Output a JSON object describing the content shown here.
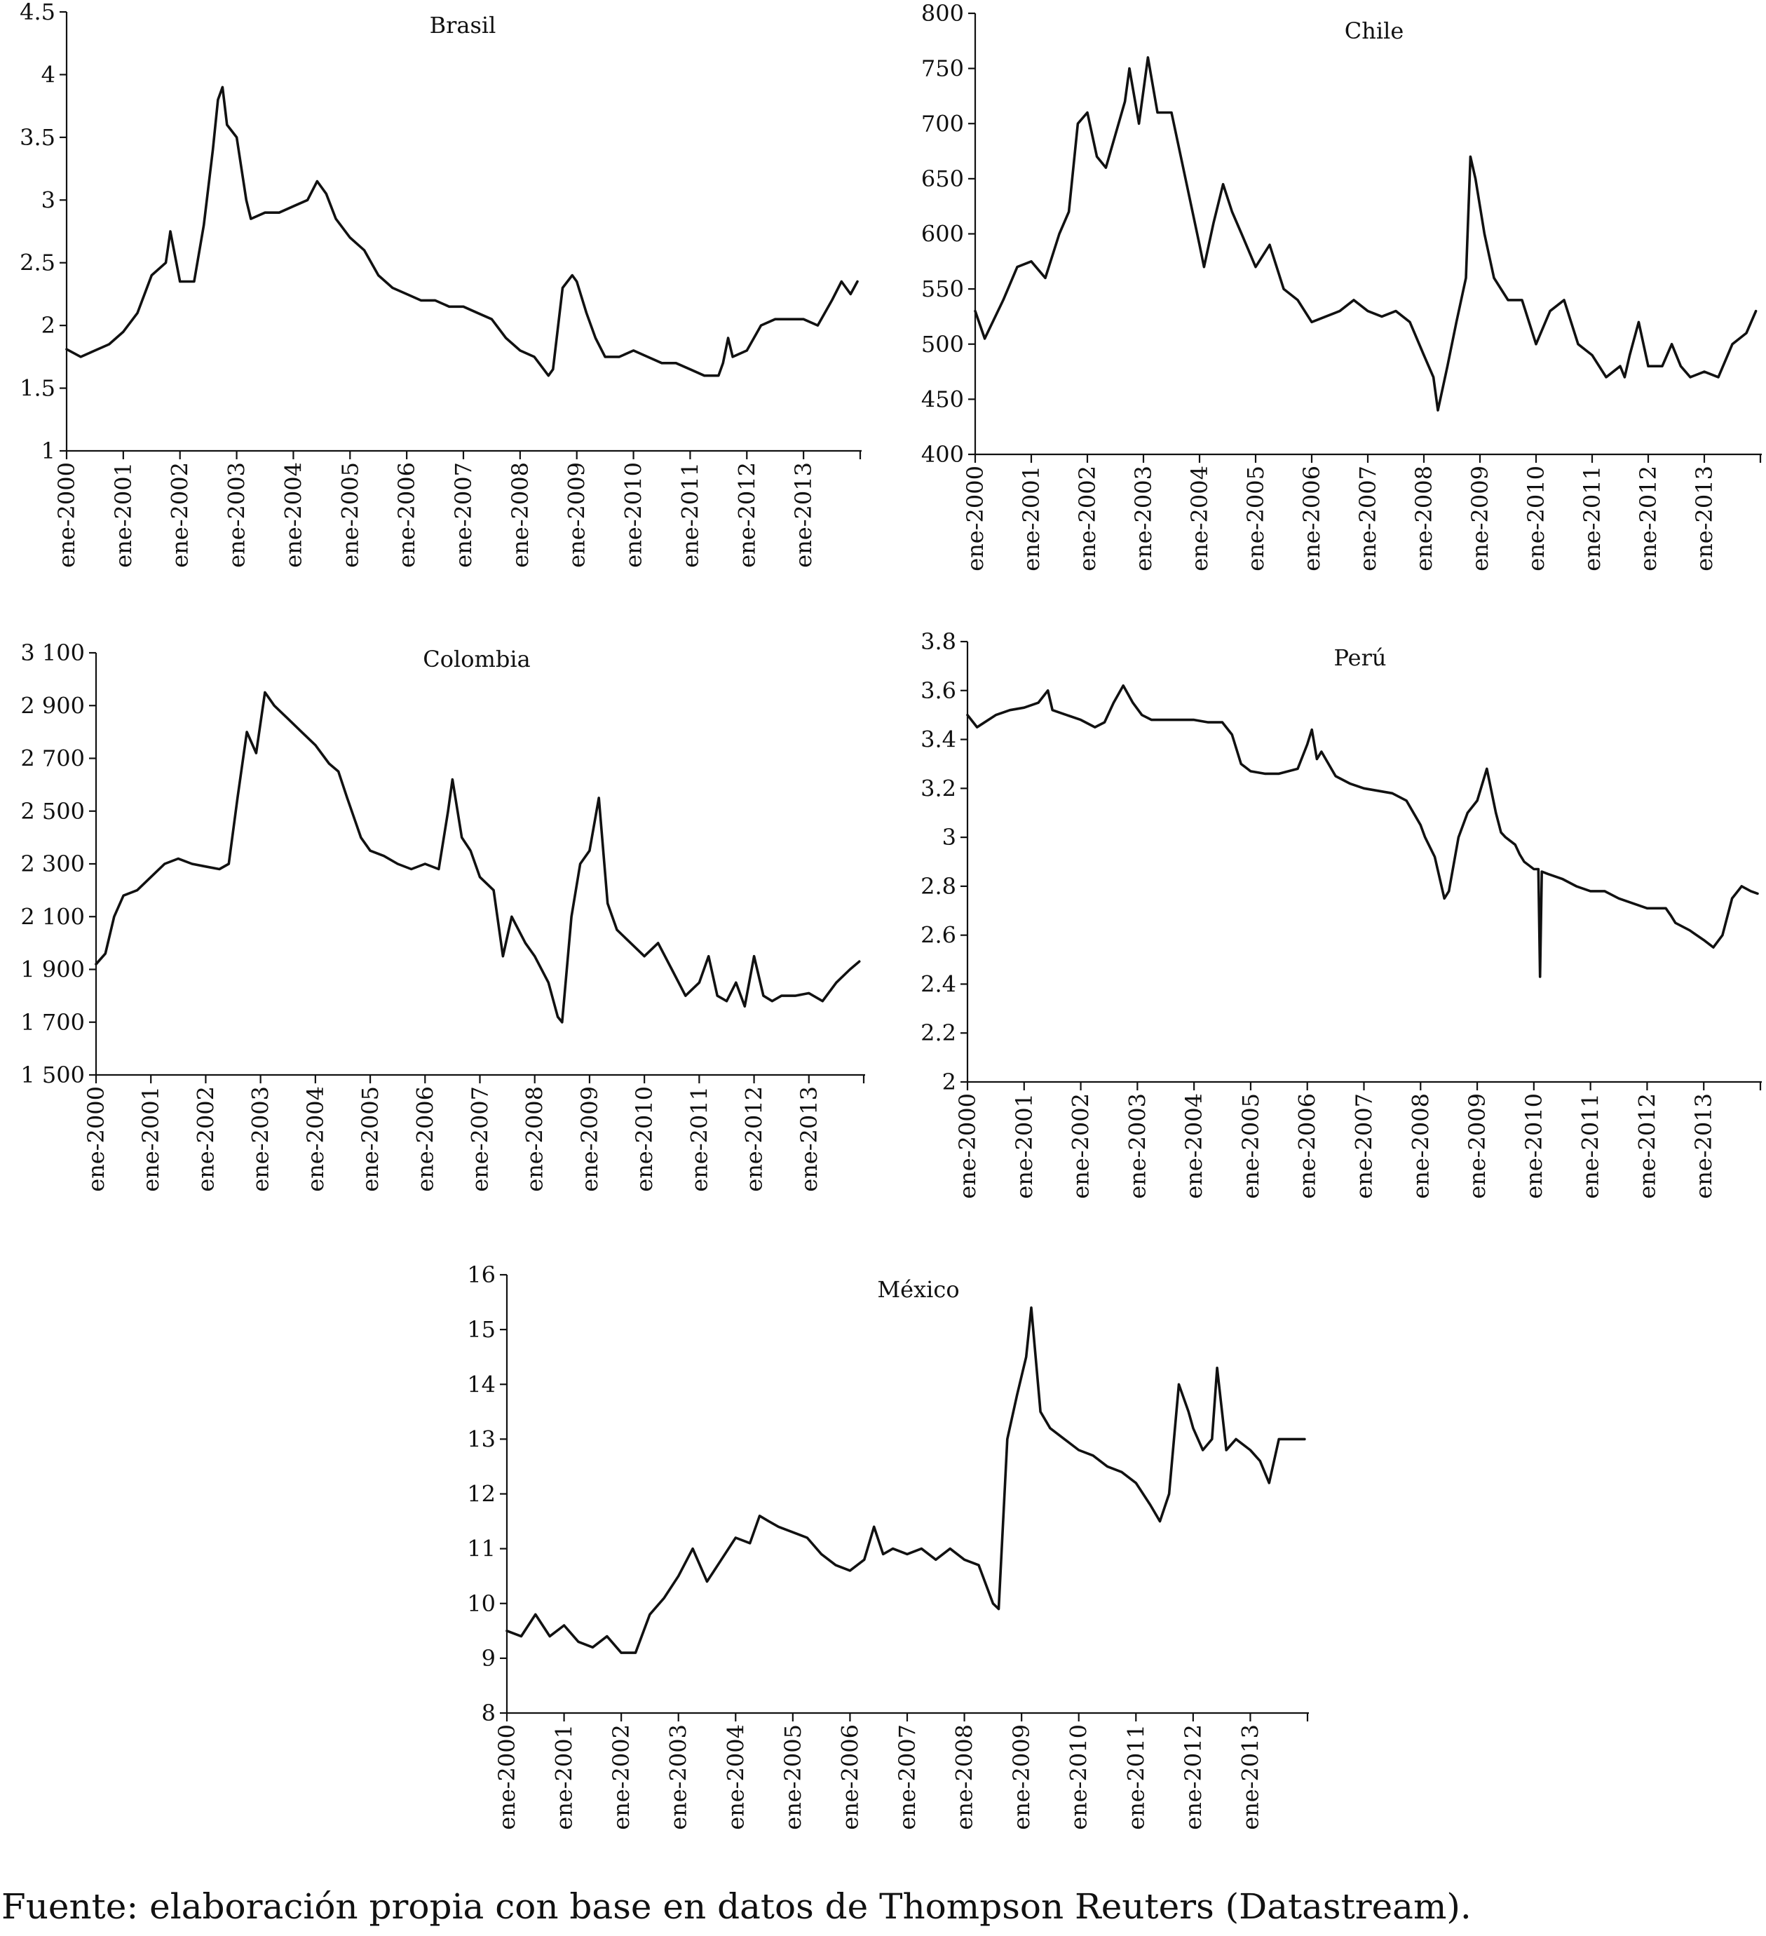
{
  "source": "Fuente: elaboración propia con base en datos de Thompson Reuters (Datastream).",
  "chart_data": [
    {
      "type": "line",
      "title": "Brasil",
      "xlabel": "",
      "ylabel": "",
      "ylim": [
        1,
        4.5
      ],
      "y_ticks": [
        "1",
        "1.5",
        "2",
        "2.5",
        "3",
        "3.5",
        "4",
        "4.5"
      ],
      "x_tick_labels": [
        "ene-2000",
        "ene-2001",
        "ene-2002",
        "ene-2003",
        "ene-2004",
        "ene-2005",
        "ene-2006",
        "ene-2007",
        "ene-2008",
        "ene-2009",
        "ene-2010",
        "ene-2011",
        "ene-2012",
        "ene-2013"
      ],
      "xlim": [
        2000,
        2014
      ],
      "grid": false,
      "series": [
        {
          "x": [
            2000.0,
            2000.25,
            2000.5,
            2000.75,
            2001.0,
            2001.25,
            2001.5,
            2001.75,
            2001.83,
            2002.0,
            2002.25,
            2002.42,
            2002.58,
            2002.67,
            2002.75,
            2002.83,
            2003.0,
            2003.17,
            2003.25,
            2003.5,
            2003.75,
            2004.0,
            2004.25,
            2004.42,
            2004.58,
            2004.75,
            2005.0,
            2005.25,
            2005.5,
            2005.75,
            2006.0,
            2006.25,
            2006.5,
            2006.75,
            2007.0,
            2007.25,
            2007.5,
            2007.75,
            2008.0,
            2008.25,
            2008.5,
            2008.58,
            2008.75,
            2008.92,
            2009.0,
            2009.17,
            2009.33,
            2009.5,
            2009.75,
            2010.0,
            2010.25,
            2010.5,
            2010.75,
            2011.0,
            2011.25,
            2011.5,
            2011.58,
            2011.67,
            2011.75,
            2012.0,
            2012.25,
            2012.5,
            2012.75,
            2013.0,
            2013.25,
            2013.5,
            2013.67,
            2013.83,
            2013.95
          ],
          "y": [
            1.81,
            1.75,
            1.8,
            1.85,
            1.95,
            2.1,
            2.4,
            2.5,
            2.75,
            2.35,
            2.35,
            2.8,
            3.4,
            3.8,
            3.9,
            3.6,
            3.5,
            3.0,
            2.85,
            2.9,
            2.9,
            2.95,
            3.0,
            3.15,
            3.05,
            2.85,
            2.7,
            2.6,
            2.4,
            2.3,
            2.25,
            2.2,
            2.2,
            2.15,
            2.15,
            2.1,
            2.05,
            1.9,
            1.8,
            1.75,
            1.6,
            1.65,
            2.3,
            2.4,
            2.35,
            2.1,
            1.9,
            1.75,
            1.75,
            1.8,
            1.75,
            1.7,
            1.7,
            1.65,
            1.6,
            1.6,
            1.7,
            1.9,
            1.75,
            1.8,
            2.0,
            2.05,
            2.05,
            2.05,
            2.0,
            2.2,
            2.35,
            2.25,
            2.35
          ]
        }
      ]
    },
    {
      "type": "line",
      "title": "Chile",
      "xlabel": "",
      "ylabel": "",
      "ylim": [
        400,
        800
      ],
      "y_ticks": [
        "400",
        "450",
        "500",
        "550",
        "600",
        "650",
        "700",
        "750",
        "800"
      ],
      "x_tick_labels": [
        "ene-2000",
        "ene-2001",
        "ene-2002",
        "ene-2003",
        "ene-2004",
        "ene-2005",
        "ene-2006",
        "ene-2007",
        "ene-2008",
        "ene-2009",
        "ene-2010",
        "ene-2011",
        "ene-2012",
        "ene-2013"
      ],
      "xlim": [
        2000,
        2014
      ],
      "grid": false,
      "series": [
        {
          "x": [
            2000.0,
            2000.17,
            2000.5,
            2000.75,
            2001.0,
            2001.25,
            2001.5,
            2001.67,
            2001.83,
            2002.0,
            2002.17,
            2002.33,
            2002.5,
            2002.67,
            2002.75,
            2002.92,
            2003.08,
            2003.25,
            2003.5,
            2003.75,
            2004.0,
            2004.08,
            2004.25,
            2004.42,
            2004.58,
            2004.75,
            2005.0,
            2005.25,
            2005.5,
            2005.75,
            2006.0,
            2006.25,
            2006.5,
            2006.75,
            2007.0,
            2007.25,
            2007.5,
            2007.75,
            2008.0,
            2008.17,
            2008.25,
            2008.42,
            2008.58,
            2008.75,
            2008.83,
            2008.92,
            2009.08,
            2009.25,
            2009.5,
            2009.75,
            2010.0,
            2010.25,
            2010.5,
            2010.75,
            2011.0,
            2011.25,
            2011.5,
            2011.58,
            2011.67,
            2011.83,
            2012.0,
            2012.25,
            2012.42,
            2012.58,
            2012.75,
            2013.0,
            2013.25,
            2013.5,
            2013.75,
            2013.92
          ],
          "y": [
            530,
            505,
            540,
            570,
            575,
            560,
            600,
            620,
            700,
            710,
            670,
            660,
            690,
            720,
            750,
            700,
            760,
            710,
            710,
            650,
            590,
            570,
            610,
            645,
            620,
            600,
            570,
            590,
            550,
            540,
            520,
            525,
            530,
            540,
            530,
            525,
            530,
            520,
            490,
            470,
            440,
            480,
            520,
            560,
            670,
            650,
            600,
            560,
            540,
            540,
            500,
            530,
            540,
            500,
            490,
            470,
            480,
            470,
            490,
            520,
            480,
            480,
            500,
            480,
            470,
            475,
            470,
            500,
            510,
            530
          ]
        }
      ]
    },
    {
      "type": "line",
      "title": "Colombia",
      "xlabel": "",
      "ylabel": "",
      "ylim": [
        1500,
        3100
      ],
      "y_ticks": [
        "1 500",
        "1 700",
        "1 900",
        "2 100",
        "2 300",
        "2 500",
        "2 700",
        "2 900",
        "3 100"
      ],
      "x_tick_labels": [
        "ene-2000",
        "ene-2001",
        "ene-2002",
        "ene-2003",
        "ene-2004",
        "ene-2005",
        "ene-2006",
        "ene-2007",
        "ene-2008",
        "ene-2009",
        "ene-2010",
        "ene-2011",
        "ene-2012",
        "ene-2013"
      ],
      "xlim": [
        2000,
        2014
      ],
      "grid": false,
      "series": [
        {
          "x": [
            2000.0,
            2000.17,
            2000.33,
            2000.5,
            2000.75,
            2001.0,
            2001.25,
            2001.5,
            2001.75,
            2002.0,
            2002.25,
            2002.42,
            2002.58,
            2002.75,
            2002.92,
            2003.08,
            2003.25,
            2003.5,
            2003.75,
            2004.0,
            2004.25,
            2004.42,
            2004.58,
            2004.83,
            2005.0,
            2005.25,
            2005.5,
            2005.75,
            2006.0,
            2006.25,
            2006.42,
            2006.5,
            2006.67,
            2006.83,
            2007.0,
            2007.25,
            2007.42,
            2007.58,
            2007.83,
            2008.0,
            2008.25,
            2008.42,
            2008.5,
            2008.67,
            2008.83,
            2009.0,
            2009.17,
            2009.33,
            2009.5,
            2009.75,
            2010.0,
            2010.25,
            2010.5,
            2010.75,
            2011.0,
            2011.17,
            2011.33,
            2011.5,
            2011.67,
            2011.83,
            2012.0,
            2012.17,
            2012.33,
            2012.5,
            2012.75,
            2013.0,
            2013.25,
            2013.5,
            2013.75,
            2013.92
          ],
          "y": [
            1920,
            1960,
            2100,
            2180,
            2200,
            2250,
            2300,
            2320,
            2300,
            2290,
            2280,
            2300,
            2550,
            2800,
            2720,
            2950,
            2900,
            2850,
            2800,
            2750,
            2680,
            2650,
            2550,
            2400,
            2350,
            2330,
            2300,
            2280,
            2300,
            2280,
            2500,
            2620,
            2400,
            2350,
            2250,
            2200,
            1950,
            2100,
            2000,
            1950,
            1850,
            1720,
            1700,
            2100,
            2300,
            2350,
            2550,
            2150,
            2050,
            2000,
            1950,
            2000,
            1900,
            1800,
            1850,
            1950,
            1800,
            1780,
            1850,
            1760,
            1950,
            1800,
            1780,
            1800,
            1800,
            1810,
            1780,
            1850,
            1900,
            1930
          ]
        }
      ]
    },
    {
      "type": "line",
      "title": "Perú",
      "xlabel": "",
      "ylabel": "",
      "ylim": [
        2,
        3.8
      ],
      "y_ticks": [
        "2",
        "2.2",
        "2.4",
        "2.6",
        "2.8",
        "3",
        "3.2",
        "3.4",
        "3.6",
        "3.8"
      ],
      "x_tick_labels": [
        "ene-2000",
        "ene-2001",
        "ene-2002",
        "ene-2003",
        "ene-2004",
        "ene-2005",
        "ene-2006",
        "ene-2007",
        "ene-2008",
        "ene-2009",
        "ene-2010",
        "ene-2011",
        "ene-2012",
        "ene-2013"
      ],
      "xlim": [
        2000,
        2014
      ],
      "grid": false,
      "series": [
        {
          "x": [
            2000.0,
            2000.17,
            2000.5,
            2000.75,
            2001.0,
            2001.25,
            2001.42,
            2001.5,
            2001.75,
            2002.0,
            2002.25,
            2002.42,
            2002.58,
            2002.75,
            2002.92,
            2003.08,
            2003.25,
            2003.5,
            2003.75,
            2004.0,
            2004.25,
            2004.5,
            2004.67,
            2004.83,
            2005.0,
            2005.25,
            2005.5,
            2005.83,
            2006.0,
            2006.08,
            2006.17,
            2006.25,
            2006.5,
            2006.75,
            2007.0,
            2007.25,
            2007.5,
            2007.75,
            2008.0,
            2008.08,
            2008.25,
            2008.42,
            2008.5,
            2008.67,
            2008.83,
            2009.0,
            2009.17,
            2009.33,
            2009.42,
            2009.5,
            2009.67,
            2009.75,
            2009.83,
            2010.0,
            2010.08,
            2010.11,
            2010.14,
            2010.25,
            2010.5,
            2010.75,
            2011.0,
            2011.25,
            2011.5,
            2011.75,
            2012.0,
            2012.33,
            2012.42,
            2012.5,
            2012.75,
            2013.0,
            2013.17,
            2013.33,
            2013.5,
            2013.67,
            2013.83,
            2013.95
          ],
          "y": [
            3.5,
            3.45,
            3.5,
            3.52,
            3.53,
            3.55,
            3.6,
            3.52,
            3.5,
            3.48,
            3.45,
            3.47,
            3.55,
            3.62,
            3.55,
            3.5,
            3.48,
            3.48,
            3.48,
            3.48,
            3.47,
            3.47,
            3.42,
            3.3,
            3.27,
            3.26,
            3.26,
            3.28,
            3.38,
            3.44,
            3.32,
            3.35,
            3.25,
            3.22,
            3.2,
            3.19,
            3.18,
            3.15,
            3.05,
            3.0,
            2.92,
            2.75,
            2.78,
            3.0,
            3.1,
            3.15,
            3.28,
            3.1,
            3.02,
            3.0,
            2.97,
            2.93,
            2.9,
            2.87,
            2.87,
            2.43,
            2.86,
            2.85,
            2.83,
            2.8,
            2.78,
            2.78,
            2.75,
            2.73,
            2.71,
            2.71,
            2.68,
            2.65,
            2.62,
            2.58,
            2.55,
            2.6,
            2.75,
            2.8,
            2.78,
            2.77
          ]
        }
      ]
    },
    {
      "type": "line",
      "title": "México",
      "xlabel": "",
      "ylabel": "",
      "ylim": [
        8,
        16
      ],
      "y_ticks": [
        "8",
        "9",
        "10",
        "11",
        "12",
        "13",
        "14",
        "15",
        "16"
      ],
      "x_tick_labels": [
        "ene-2000",
        "ene-2001",
        "ene-2002",
        "ene-2003",
        "ene-2004",
        "ene-2005",
        "ene-2006",
        "ene-2007",
        "ene-2008",
        "ene-2009",
        "ene-2010",
        "ene-2011",
        "ene-2012",
        "ene-2013"
      ],
      "xlim": [
        2000,
        2014
      ],
      "grid": false,
      "series": [
        {
          "x": [
            2000.0,
            2000.25,
            2000.5,
            2000.75,
            2001.0,
            2001.25,
            2001.5,
            2001.75,
            2002.0,
            2002.25,
            2002.5,
            2002.75,
            2003.0,
            2003.25,
            2003.5,
            2003.75,
            2004.0,
            2004.25,
            2004.42,
            2004.58,
            2004.75,
            2005.0,
            2005.25,
            2005.5,
            2005.75,
            2006.0,
            2006.25,
            2006.42,
            2006.58,
            2006.75,
            2007.0,
            2007.25,
            2007.5,
            2007.75,
            2008.0,
            2008.25,
            2008.5,
            2008.6,
            2008.75,
            2008.92,
            2009.08,
            2009.17,
            2009.33,
            2009.5,
            2009.75,
            2010.0,
            2010.25,
            2010.5,
            2010.75,
            2011.0,
            2011.25,
            2011.42,
            2011.58,
            2011.75,
            2011.92,
            2012.0,
            2012.17,
            2012.33,
            2012.42,
            2012.58,
            2012.75,
            2013.0,
            2013.17,
            2013.33,
            2013.5,
            2013.75,
            2013.95
          ],
          "y": [
            9.5,
            9.4,
            9.8,
            9.4,
            9.6,
            9.3,
            9.2,
            9.4,
            9.1,
            9.1,
            9.8,
            10.1,
            10.5,
            11.0,
            10.4,
            10.8,
            11.2,
            11.1,
            11.6,
            11.5,
            11.4,
            11.3,
            11.2,
            10.9,
            10.7,
            10.6,
            10.8,
            11.4,
            10.9,
            11.0,
            10.9,
            11.0,
            10.8,
            11.0,
            10.8,
            10.7,
            10.0,
            9.9,
            13.0,
            13.8,
            14.5,
            15.4,
            13.5,
            13.2,
            13.0,
            12.8,
            12.7,
            12.5,
            12.4,
            12.2,
            11.8,
            11.5,
            12.0,
            14.0,
            13.5,
            13.2,
            12.8,
            13.0,
            14.3,
            12.8,
            13.0,
            12.8,
            12.6,
            12.2,
            13.0,
            13.0,
            13.0
          ]
        }
      ]
    }
  ]
}
